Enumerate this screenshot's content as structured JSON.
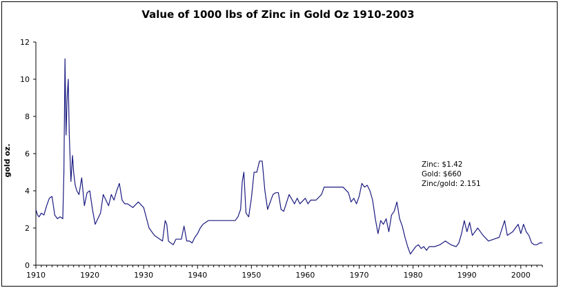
{
  "chart_data": {
    "type": "line",
    "title": "Value of 1000 lbs of Zinc in Gold Oz 1910-2003",
    "xlabel": "",
    "ylabel": "gold oz.",
    "xlim": [
      1910,
      2004
    ],
    "ylim": [
      0,
      12
    ],
    "x_ticks": [
      1910,
      1920,
      1930,
      1940,
      1950,
      1960,
      1970,
      1980,
      1990,
      2000
    ],
    "y_ticks": [
      0,
      2,
      4,
      6,
      8,
      10,
      12
    ],
    "grid": false,
    "legend": "none",
    "line_color": "#1a1a80",
    "series": [
      {
        "x": [
          1910.0,
          1910.3,
          1910.6,
          1911.0,
          1911.5,
          1912.0,
          1912.5,
          1913.0,
          1913.5,
          1914.0,
          1914.5,
          1915.0,
          1915.2,
          1915.4,
          1915.6,
          1915.8,
          1916.0,
          1916.2,
          1916.5,
          1916.8,
          1917.0,
          1917.3,
          1917.6,
          1918.0,
          1918.5,
          1919.0,
          1919.5,
          1920.0,
          1920.5,
          1921.0,
          1921.5,
          1922.0,
          1922.5,
          1923.0,
          1923.5,
          1924.0,
          1924.5,
          1925.0,
          1925.5,
          1926.0,
          1926.5,
          1927.0,
          1928.0,
          1929.0,
          1930.0,
          1931.0,
          1932.0,
          1933.0,
          1933.5,
          1934.0,
          1934.3,
          1934.6,
          1935.0,
          1935.5,
          1936.0,
          1936.5,
          1937.0,
          1937.5,
          1938.0,
          1938.5,
          1939.0,
          1939.5,
          1940.0,
          1940.5,
          1941.0,
          1942.0,
          1944.0,
          1946.0,
          1947.0,
          1947.5,
          1948.0,
          1948.3,
          1948.6,
          1949.0,
          1949.5,
          1950.0,
          1950.5,
          1951.0,
          1951.5,
          1952.0,
          1952.5,
          1953.0,
          1953.5,
          1954.0,
          1954.5,
          1955.0,
          1955.5,
          1956.0,
          1957.0,
          1958.0,
          1958.5,
          1959.0,
          1960.0,
          1960.5,
          1961.0,
          1962.0,
          1963.0,
          1963.5,
          1964.0,
          1965.0,
          1967.0,
          1968.0,
          1968.5,
          1969.0,
          1969.5,
          1970.0,
          1970.5,
          1971.0,
          1971.5,
          1972.0,
          1972.5,
          1973.0,
          1973.5,
          1974.0,
          1974.5,
          1975.0,
          1975.5,
          1976.0,
          1976.5,
          1977.0,
          1977.5,
          1978.0,
          1978.5,
          1979.0,
          1979.5,
          1980.0,
          1980.5,
          1981.0,
          1981.5,
          1982.0,
          1982.5,
          1983.0,
          1984.0,
          1985.0,
          1986.0,
          1987.0,
          1988.0,
          1988.5,
          1989.0,
          1989.5,
          1990.0,
          1990.5,
          1991.0,
          1992.0,
          1993.0,
          1994.0,
          1995.0,
          1996.0,
          1997.0,
          1997.5,
          1998.0,
          1998.5,
          1999.0,
          1999.5,
          2000.0,
          2000.5,
          2001.0,
          2001.5,
          2002.0,
          2002.5,
          2003.0,
          2003.5,
          2004.0
        ],
        "y": [
          3.0,
          2.7,
          2.6,
          2.8,
          2.7,
          3.2,
          3.6,
          3.7,
          2.7,
          2.5,
          2.6,
          2.5,
          5.0,
          11.1,
          7.0,
          9.0,
          10.0,
          7.0,
          4.5,
          5.9,
          5.0,
          4.3,
          4.0,
          3.8,
          4.7,
          3.2,
          3.9,
          4.0,
          3.0,
          2.2,
          2.5,
          2.8,
          3.8,
          3.5,
          3.2,
          3.8,
          3.5,
          4.0,
          4.4,
          3.5,
          3.3,
          3.3,
          3.1,
          3.4,
          3.1,
          2.0,
          1.6,
          1.4,
          1.3,
          2.4,
          2.2,
          1.3,
          1.2,
          1.1,
          1.4,
          1.4,
          1.4,
          2.1,
          1.3,
          1.3,
          1.2,
          1.5,
          1.7,
          2.0,
          2.2,
          2.4,
          2.4,
          2.4,
          2.4,
          2.6,
          3.0,
          4.5,
          5.0,
          2.8,
          2.6,
          3.6,
          5.0,
          5.0,
          5.6,
          5.6,
          4.0,
          3.0,
          3.4,
          3.8,
          3.9,
          3.9,
          3.0,
          2.9,
          3.8,
          3.3,
          3.6,
          3.3,
          3.6,
          3.3,
          3.5,
          3.5,
          3.8,
          4.2,
          4.2,
          4.2,
          4.2,
          3.9,
          3.4,
          3.6,
          3.3,
          3.7,
          4.4,
          4.2,
          4.3,
          4.0,
          3.5,
          2.5,
          1.7,
          2.4,
          2.2,
          2.5,
          1.8,
          2.7,
          2.9,
          3.4,
          2.5,
          2.1,
          1.5,
          1.0,
          0.6,
          0.8,
          1.0,
          1.1,
          0.9,
          1.0,
          0.8,
          1.0,
          1.0,
          1.1,
          1.3,
          1.1,
          1.0,
          1.2,
          1.7,
          2.4,
          1.8,
          2.3,
          1.6,
          2.0,
          1.6,
          1.3,
          1.4,
          1.5,
          2.4,
          1.6,
          1.7,
          1.8,
          2.0,
          2.2,
          1.7,
          2.2,
          1.8,
          1.6,
          1.2,
          1.1,
          1.1,
          1.2,
          1.2
        ]
      }
    ]
  },
  "annotation": {
    "zinc": "Zinc: $1.42",
    "gold": "Gold: $660",
    "ratio": "Zinc/gold: 2.151"
  }
}
